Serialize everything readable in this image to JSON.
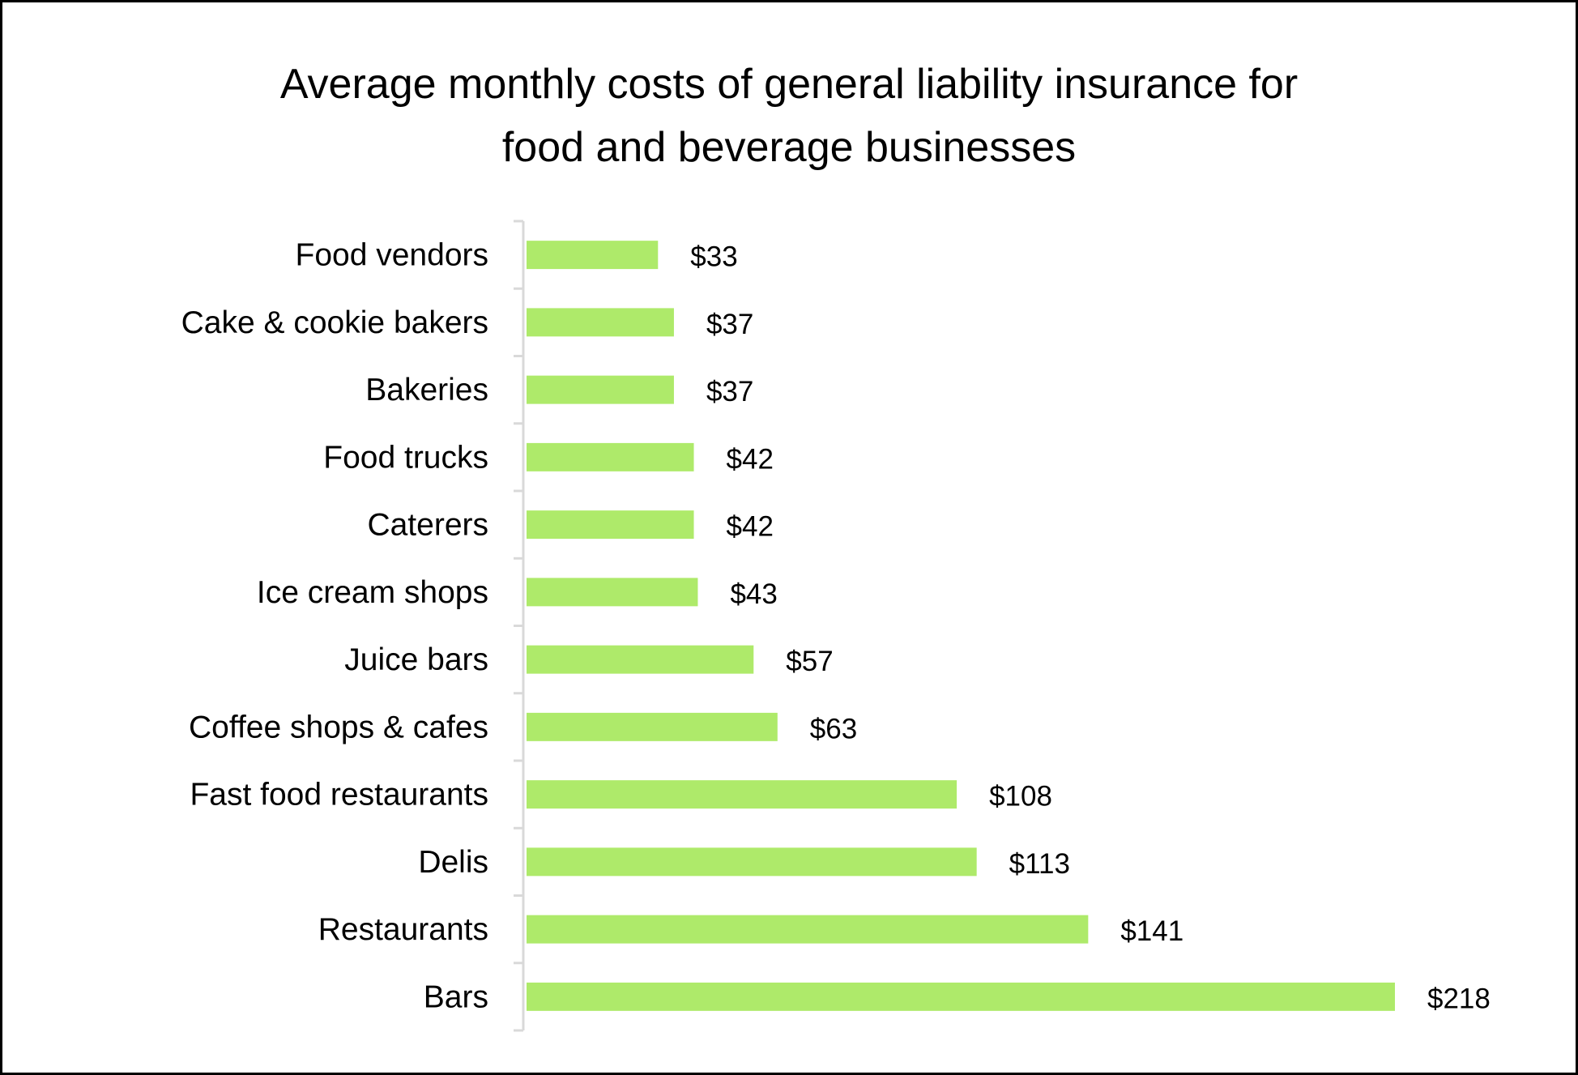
{
  "chart_data": {
    "type": "bar",
    "orientation": "horizontal",
    "title": "Average monthly costs of general liability insurance for food and beverage businesses",
    "title_lines": [
      "Average monthly costs of general liability insurance for",
      "food and beverage businesses"
    ],
    "categories": [
      "Food vendors",
      "Cake & cookie bakers",
      "Bakeries",
      "Food trucks",
      "Caterers",
      "Ice cream shops",
      "Juice bars",
      "Coffee shops & cafes",
      "Fast food restaurants",
      "Delis",
      "Restaurants",
      "Bars"
    ],
    "values": [
      33,
      37,
      37,
      42,
      42,
      43,
      57,
      63,
      108,
      113,
      141,
      218
    ],
    "data_labels": [
      "$33",
      "$37",
      "$37",
      "$42",
      "$42",
      "$43",
      "$57",
      "$63",
      "$108",
      "$113",
      "$141",
      "$218"
    ],
    "xlabel": "",
    "ylabel": "",
    "xlim": [
      0,
      218
    ],
    "grid": false,
    "legend": "none",
    "bar_color": "#aeea6a",
    "axis_color": "#d9d9d9"
  }
}
